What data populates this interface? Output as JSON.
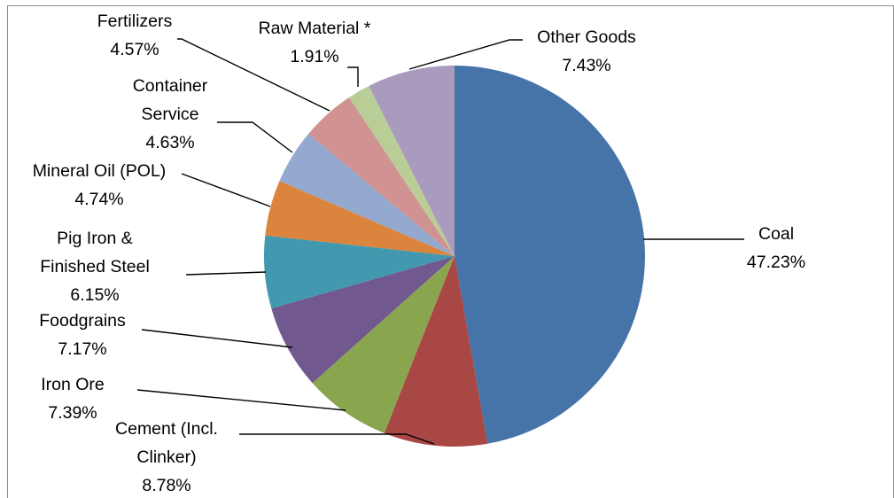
{
  "chart_data": {
    "type": "pie",
    "title": "",
    "start_angle_deg": 0,
    "direction": "clockwise",
    "slices": [
      {
        "label_lines": [
          "Coal"
        ],
        "value": 47.23,
        "percent_text": "47.23%",
        "color": "#4674A8"
      },
      {
        "label_lines": [
          "Cement (Incl.",
          "Clinker)"
        ],
        "value": 8.78,
        "percent_text": "8.78%",
        "color": "#A94744"
      },
      {
        "label_lines": [
          "Iron Ore"
        ],
        "value": 7.39,
        "percent_text": "7.39%",
        "color": "#89A54E"
      },
      {
        "label_lines": [
          "Foodgrains"
        ],
        "value": 7.17,
        "percent_text": "7.17%",
        "color": "#71588F"
      },
      {
        "label_lines": [
          "Pig Iron &",
          "Finished Steel"
        ],
        "value": 6.15,
        "percent_text": "6.15%",
        "color": "#4198AF"
      },
      {
        "label_lines": [
          "Mineral Oil (POL)"
        ],
        "value": 4.74,
        "percent_text": "4.74%",
        "color": "#DB843D"
      },
      {
        "label_lines": [
          "Container",
          "Service"
        ],
        "value": 4.63,
        "percent_text": "4.63%",
        "color": "#93A9CF"
      },
      {
        "label_lines": [
          "Fertilizers"
        ],
        "value": 4.57,
        "percent_text": "4.57%",
        "color": "#D19392"
      },
      {
        "label_lines": [
          "Raw Material *"
        ],
        "value": 1.91,
        "percent_text": "1.91%",
        "color": "#B9CD96"
      },
      {
        "label_lines": [
          "Other Goods"
        ],
        "value": 7.43,
        "percent_text": "7.43%",
        "color": "#A99BBD"
      }
    ]
  }
}
